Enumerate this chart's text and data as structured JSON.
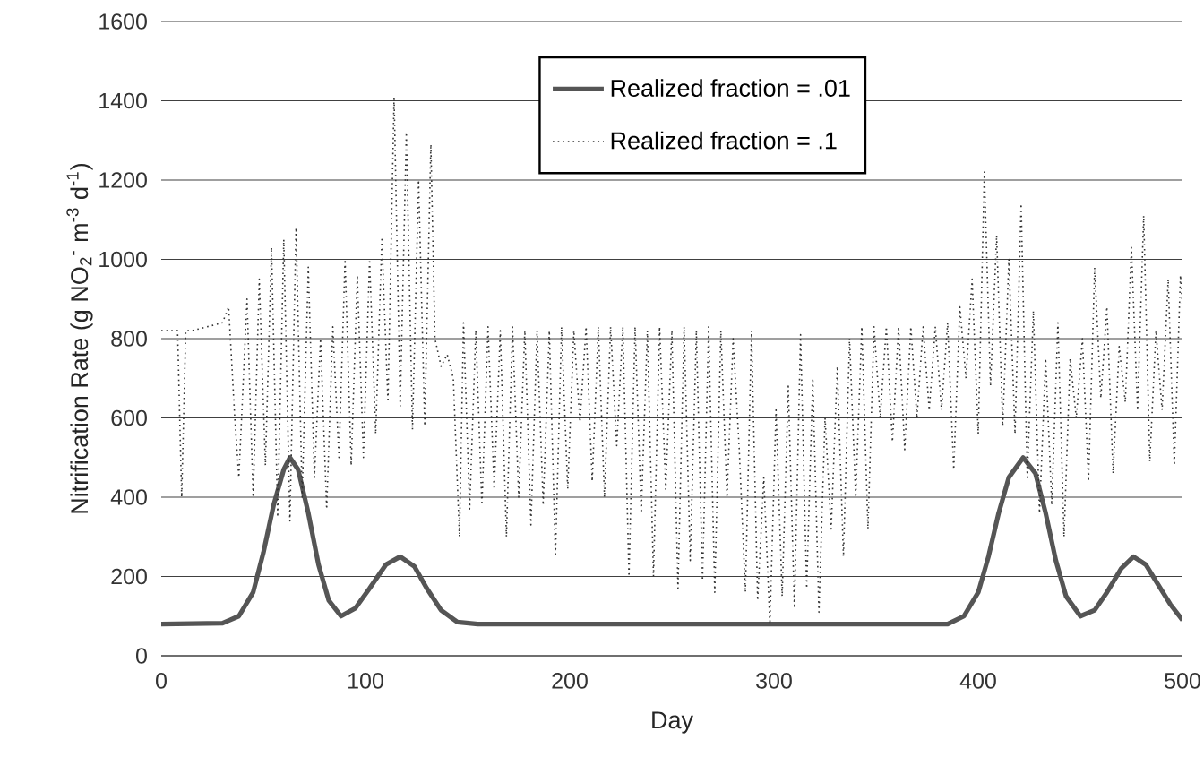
{
  "chart_data": {
    "type": "line",
    "xlabel": "Day",
    "ylabel": "Nitrification Rate (g NO$_{2}$$^{-}$ m$^{-3}$ d$^{-1}$)",
    "xlim": [
      0,
      500
    ],
    "xticks": [
      0,
      100,
      200,
      300,
      400,
      500
    ],
    "ylim": [
      0,
      1600
    ],
    "yticks": [
      0,
      200,
      400,
      600,
      800,
      1000,
      1200,
      1400,
      1600
    ],
    "grid": "y",
    "legend": "top",
    "marker": "none",
    "series": [
      {
        "name": "Realized fraction = .01",
        "color": "#555555",
        "line_style": "solid",
        "x": [
          0,
          30,
          38,
          45,
          50,
          55,
          60,
          63,
          67,
          72,
          77,
          82,
          88,
          95,
          102,
          110,
          117,
          124,
          130,
          137,
          145,
          155,
          385,
          393,
          400,
          405,
          410,
          415,
          422,
          428,
          433,
          438,
          443,
          450,
          457,
          463,
          470,
          476,
          482,
          488,
          494,
          500
        ],
        "values": [
          80,
          82,
          100,
          160,
          260,
          380,
          470,
          500,
          470,
          360,
          230,
          140,
          100,
          120,
          170,
          230,
          250,
          225,
          170,
          115,
          85,
          80,
          80,
          100,
          160,
          250,
          360,
          450,
          500,
          460,
          360,
          240,
          150,
          100,
          115,
          160,
          220,
          250,
          230,
          180,
          130,
          90
        ]
      },
      {
        "name": "Realized fraction = .1",
        "color": "#333333",
        "line_style": "dotted",
        "x": [
          0,
          8,
          10,
          12,
          15,
          30,
          33,
          36,
          38,
          42,
          45,
          48,
          51,
          54,
          57,
          60,
          63,
          66,
          69,
          72,
          75,
          78,
          81,
          84,
          87,
          90,
          93,
          96,
          99,
          102,
          105,
          108,
          111,
          114,
          117,
          120,
          123,
          126,
          129,
          132,
          134,
          137,
          140,
          143,
          146,
          148,
          151,
          154,
          157,
          160,
          163,
          166,
          169,
          172,
          175,
          178,
          181,
          184,
          187,
          190,
          193,
          196,
          199,
          202,
          205,
          208,
          211,
          214,
          217,
          220,
          223,
          226,
          229,
          232,
          235,
          238,
          241,
          244,
          247,
          250,
          253,
          256,
          259,
          262,
          265,
          268,
          271,
          274,
          277,
          280,
          283,
          286,
          289,
          292,
          295,
          298,
          301,
          304,
          307,
          310,
          313,
          316,
          319,
          322,
          325,
          328,
          331,
          334,
          337,
          340,
          343,
          346,
          349,
          352,
          355,
          358,
          361,
          364,
          367,
          370,
          373,
          376,
          379,
          382,
          385,
          388,
          391,
          394,
          397,
          400,
          403,
          406,
          409,
          412,
          415,
          418,
          421,
          424,
          427,
          430,
          433,
          436,
          439,
          442,
          445,
          448,
          451,
          454,
          457,
          460,
          463,
          466,
          469,
          472,
          475,
          478,
          481,
          484,
          487,
          490,
          493,
          496,
          499,
          500
        ],
        "values": [
          820,
          820,
          400,
          820,
          820,
          840,
          880,
          600,
          450,
          900,
          400,
          950,
          480,
          1030,
          350,
          1050,
          340,
          1080,
          400,
          980,
          450,
          800,
          370,
          830,
          500,
          1000,
          480,
          960,
          500,
          1000,
          560,
          1050,
          640,
          1410,
          630,
          1320,
          570,
          1200,
          580,
          1290,
          800,
          730,
          760,
          700,
          300,
          840,
          370,
          820,
          380,
          830,
          420,
          820,
          300,
          830,
          400,
          820,
          330,
          820,
          380,
          820,
          250,
          830,
          420,
          820,
          590,
          830,
          440,
          830,
          400,
          830,
          530,
          830,
          200,
          830,
          360,
          820,
          200,
          830,
          420,
          820,
          170,
          830,
          240,
          820,
          190,
          830,
          160,
          820,
          400,
          800,
          520,
          160,
          820,
          140,
          450,
          80,
          620,
          150,
          680,
          120,
          810,
          170,
          700,
          110,
          600,
          320,
          730,
          250,
          800,
          400,
          830,
          320,
          830,
          600,
          830,
          540,
          830,
          520,
          830,
          600,
          830,
          620,
          830,
          620,
          840,
          470,
          880,
          700,
          950,
          560,
          1220,
          680,
          1060,
          580,
          1000,
          560,
          1140,
          450,
          870,
          360,
          750,
          380,
          840,
          300,
          750,
          600,
          800,
          440,
          980,
          650,
          880,
          460,
          780,
          640,
          1030,
          620,
          1110,
          490,
          820,
          620,
          950,
          480,
          960,
          880
        ]
      }
    ]
  }
}
